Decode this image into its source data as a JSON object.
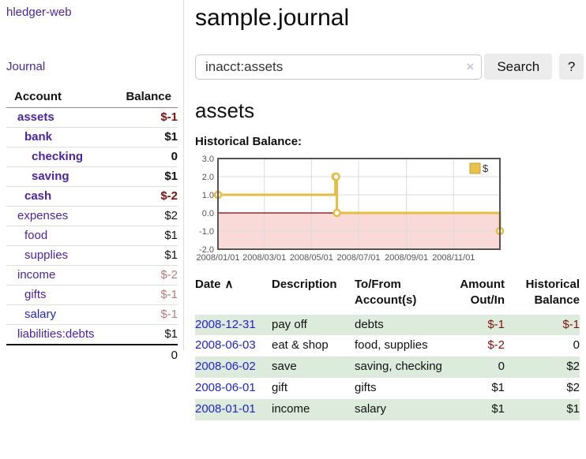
{
  "colors": {
    "link_purple": "#4B24A3",
    "link_blue": "#2323CC",
    "negative_strong": "#7F1210",
    "negative_muted": "#BA7A7A",
    "row_stripe_green": "#DCEBDC",
    "button_gray": "#ECECEC"
  },
  "app": {
    "brand": "hledger-web",
    "nav_journal": "Journal"
  },
  "sidebar": {
    "accounts_table": {
      "headers": {
        "account": "Account",
        "balance": "Balance"
      },
      "rows": [
        {
          "account": "assets",
          "depth": 1,
          "inacct": true,
          "blue_link": false,
          "balance": "$-1",
          "tone": "neg"
        },
        {
          "account": "bank",
          "depth": 2,
          "inacct": true,
          "blue_link": false,
          "balance": "$1",
          "tone": "pos"
        },
        {
          "account": "checking",
          "depth": 3,
          "inacct": true,
          "blue_link": false,
          "balance": "0",
          "tone": "pos"
        },
        {
          "account": "saving",
          "depth": 3,
          "inacct": true,
          "blue_link": false,
          "balance": "$1",
          "tone": "pos"
        },
        {
          "account": "cash",
          "depth": 2,
          "inacct": true,
          "blue_link": false,
          "balance": "$-2",
          "tone": "neg"
        },
        {
          "account": "expenses",
          "depth": 1,
          "inacct": false,
          "blue_link": false,
          "balance": "$2",
          "tone": "pos"
        },
        {
          "account": "food",
          "depth": 2,
          "inacct": false,
          "blue_link": false,
          "balance": "$1",
          "tone": "pos"
        },
        {
          "account": "supplies",
          "depth": 2,
          "inacct": false,
          "blue_link": false,
          "balance": "$1",
          "tone": "pos"
        },
        {
          "account": "income",
          "depth": 1,
          "inacct": false,
          "blue_link": false,
          "balance": "$-2",
          "tone": "neg"
        },
        {
          "account": "gifts",
          "depth": 2,
          "inacct": false,
          "blue_link": false,
          "balance": "$-1",
          "tone": "neg"
        },
        {
          "account": "salary",
          "depth": 2,
          "inacct": false,
          "blue_link": true,
          "balance": "$-1",
          "tone": "neg"
        },
        {
          "account": "liabilities:debts",
          "depth": 1,
          "inacct": false,
          "blue_link": false,
          "balance": "$1",
          "tone": "pos"
        }
      ],
      "total": "0"
    }
  },
  "main": {
    "title": "sample.journal",
    "search": {
      "value": "inacct:assets",
      "clear_icon": "×",
      "search_button": "Search",
      "help_button": "?"
    },
    "account_heading": "assets",
    "chart_title": "Historical Balance:"
  },
  "chart_data": {
    "type": "line",
    "step": true,
    "title": "Historical Balance",
    "series": [
      {
        "name": "$",
        "points": [
          [
            "2008-01-01",
            1
          ],
          [
            "2008-06-01",
            2
          ],
          [
            "2008-06-02",
            2
          ],
          [
            "2008-06-03",
            0
          ],
          [
            "2008-12-31",
            -1
          ]
        ]
      }
    ],
    "xlim": [
      "2008-01-01",
      "2008-12-31"
    ],
    "ylim": [
      -2,
      3
    ],
    "y_ticks": [
      {
        "value": 3,
        "label": "3.0"
      },
      {
        "value": 2,
        "label": "2.0"
      },
      {
        "value": 1,
        "label": "1.0"
      },
      {
        "value": 0,
        "label": "0.0"
      },
      {
        "value": -1,
        "label": "-1.0"
      },
      {
        "value": -2,
        "label": "-2.0"
      }
    ],
    "x_ticks": [
      {
        "date": "2008-01-01",
        "label": "2008/01/01"
      },
      {
        "date": "2008-03-01",
        "label": "2008/03/01"
      },
      {
        "date": "2008-05-01",
        "label": "2008/05/01"
      },
      {
        "date": "2008-07-01",
        "label": "2008/07/01"
      },
      {
        "date": "2008-09-01",
        "label": "2008/09/01"
      },
      {
        "date": "2008-11-01",
        "label": "2008/11/01"
      }
    ],
    "grid": true,
    "legend": {
      "position": "top-right",
      "entries": [
        {
          "label": "$",
          "color": "#E8C24C"
        }
      ]
    },
    "colors": {
      "line": "#E3BD45",
      "marker_fill": "#FFFFFF",
      "zero_line": "#8B0000",
      "negative_region": "#FAD9D9",
      "grid": "#DBDBDB",
      "border": "#545454",
      "tick_text": "#545454"
    }
  },
  "register": {
    "headers": {
      "date": "Date",
      "sort_icon": "∧",
      "description": "Description",
      "accounts": "To/From Account(s)",
      "amount": "Amount Out/In",
      "balance": "Historical Balance"
    },
    "rows": [
      {
        "date": "2008-12-31",
        "description": "pay off",
        "accounts": "debts",
        "amount": "$-1",
        "amount_neg": true,
        "balance": "$-1",
        "balance_neg": true
      },
      {
        "date": "2008-06-03",
        "description": "eat & shop",
        "accounts": "food, supplies",
        "amount": "$-2",
        "amount_neg": true,
        "balance": "0",
        "balance_neg": false
      },
      {
        "date": "2008-06-02",
        "description": "save",
        "accounts": "saving, checking",
        "amount": "0",
        "amount_neg": false,
        "balance": "$2",
        "balance_neg": false
      },
      {
        "date": "2008-06-01",
        "description": "gift",
        "accounts": "gifts",
        "amount": "$1",
        "amount_neg": false,
        "balance": "$2",
        "balance_neg": false
      },
      {
        "date": "2008-01-01",
        "description": "income",
        "accounts": "salary",
        "amount": "$1",
        "amount_neg": false,
        "balance": "$1",
        "balance_neg": false
      }
    ]
  }
}
